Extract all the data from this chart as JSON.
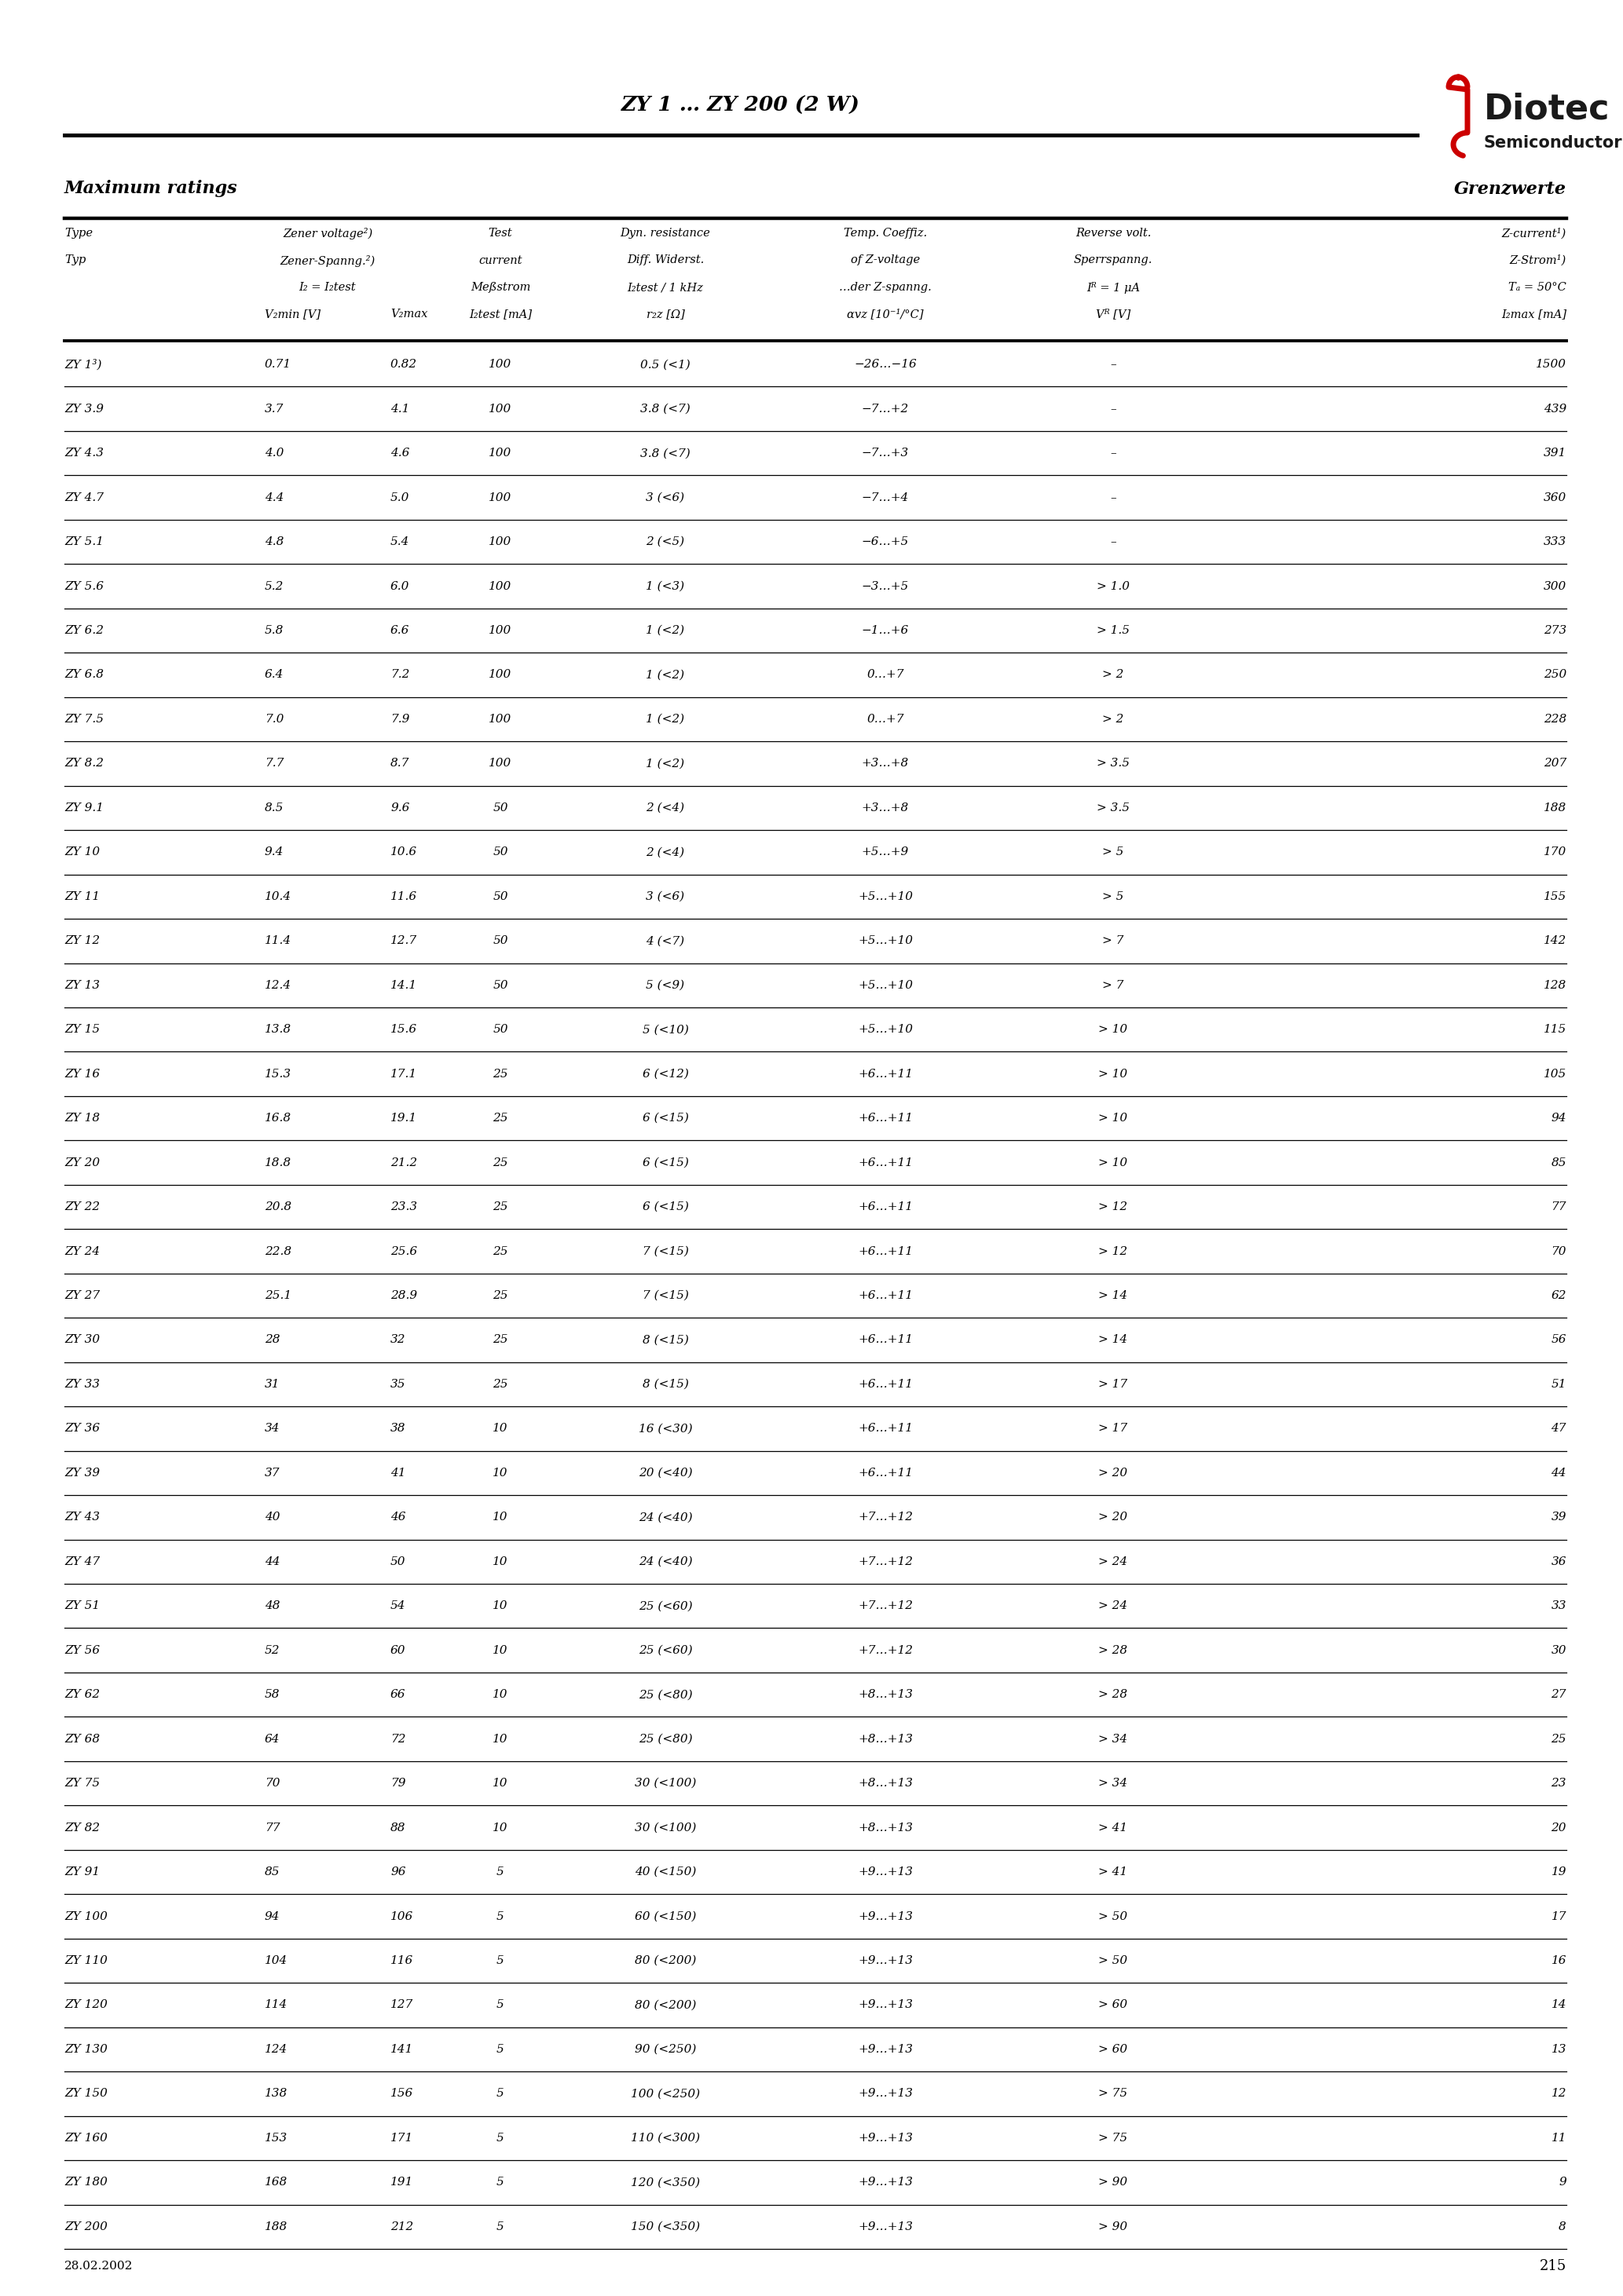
{
  "title": "ZY 1 … ZY 200 (2 W)",
  "company": "Diotec",
  "company_sub": "Semiconductor",
  "date": "28.02.2002",
  "page": "215",
  "section_left": "Maximum ratings",
  "section_right": "Grenzwerte",
  "rows": [
    [
      "ZY 1³)",
      "0.71",
      "0.82",
      "100",
      "0.5 (<1)",
      "−26…−16",
      "–",
      "1500"
    ],
    [
      "ZY 3.9",
      "3.7",
      "4.1",
      "100",
      "3.8 (<7)",
      "−7…+2",
      "–",
      "439"
    ],
    [
      "ZY 4.3",
      "4.0",
      "4.6",
      "100",
      "3.8 (<7)",
      "−7…+3",
      "–",
      "391"
    ],
    [
      "ZY 4.7",
      "4.4",
      "5.0",
      "100",
      "3 (<6)",
      "−7…+4",
      "–",
      "360"
    ],
    [
      "ZY 5.1",
      "4.8",
      "5.4",
      "100",
      "2 (<5)",
      "−6…+5",
      "–",
      "333"
    ],
    [
      "ZY 5.6",
      "5.2",
      "6.0",
      "100",
      "1 (<3)",
      "−3…+5",
      "> 1.0",
      "300"
    ],
    [
      "ZY 6.2",
      "5.8",
      "6.6",
      "100",
      "1 (<2)",
      "−1…+6",
      "> 1.5",
      "273"
    ],
    [
      "ZY 6.8",
      "6.4",
      "7.2",
      "100",
      "1 (<2)",
      "0…+7",
      "> 2",
      "250"
    ],
    [
      "ZY 7.5",
      "7.0",
      "7.9",
      "100",
      "1 (<2)",
      "0…+7",
      "> 2",
      "228"
    ],
    [
      "ZY 8.2",
      "7.7",
      "8.7",
      "100",
      "1 (<2)",
      "+3…+8",
      "> 3.5",
      "207"
    ],
    [
      "ZY 9.1",
      "8.5",
      "9.6",
      "50",
      "2 (<4)",
      "+3…+8",
      "> 3.5",
      "188"
    ],
    [
      "ZY 10",
      "9.4",
      "10.6",
      "50",
      "2 (<4)",
      "+5…+9",
      "> 5",
      "170"
    ],
    [
      "ZY 11",
      "10.4",
      "11.6",
      "50",
      "3 (<6)",
      "+5…+10",
      "> 5",
      "155"
    ],
    [
      "ZY 12",
      "11.4",
      "12.7",
      "50",
      "4 (<7)",
      "+5…+10",
      "> 7",
      "142"
    ],
    [
      "ZY 13",
      "12.4",
      "14.1",
      "50",
      "5 (<9)",
      "+5…+10",
      "> 7",
      "128"
    ],
    [
      "ZY 15",
      "13.8",
      "15.6",
      "50",
      "5 (<10)",
      "+5…+10",
      "> 10",
      "115"
    ],
    [
      "ZY 16",
      "15.3",
      "17.1",
      "25",
      "6 (<12)",
      "+6…+11",
      "> 10",
      "105"
    ],
    [
      "ZY 18",
      "16.8",
      "19.1",
      "25",
      "6 (<15)",
      "+6…+11",
      "> 10",
      "94"
    ],
    [
      "ZY 20",
      "18.8",
      "21.2",
      "25",
      "6 (<15)",
      "+6…+11",
      "> 10",
      "85"
    ],
    [
      "ZY 22",
      "20.8",
      "23.3",
      "25",
      "6 (<15)",
      "+6…+11",
      "> 12",
      "77"
    ],
    [
      "ZY 24",
      "22.8",
      "25.6",
      "25",
      "7 (<15)",
      "+6…+11",
      "> 12",
      "70"
    ],
    [
      "ZY 27",
      "25.1",
      "28.9",
      "25",
      "7 (<15)",
      "+6…+11",
      "> 14",
      "62"
    ],
    [
      "ZY 30",
      "28",
      "32",
      "25",
      "8 (<15)",
      "+6…+11",
      "> 14",
      "56"
    ],
    [
      "ZY 33",
      "31",
      "35",
      "25",
      "8 (<15)",
      "+6…+11",
      "> 17",
      "51"
    ],
    [
      "ZY 36",
      "34",
      "38",
      "10",
      "16 (<30)",
      "+6…+11",
      "> 17",
      "47"
    ],
    [
      "ZY 39",
      "37",
      "41",
      "10",
      "20 (<40)",
      "+6…+11",
      "> 20",
      "44"
    ],
    [
      "ZY 43",
      "40",
      "46",
      "10",
      "24 (<40)",
      "+7…+12",
      "> 20",
      "39"
    ],
    [
      "ZY 47",
      "44",
      "50",
      "10",
      "24 (<40)",
      "+7…+12",
      "> 24",
      "36"
    ],
    [
      "ZY 51",
      "48",
      "54",
      "10",
      "25 (<60)",
      "+7…+12",
      "> 24",
      "33"
    ],
    [
      "ZY 56",
      "52",
      "60",
      "10",
      "25 (<60)",
      "+7…+12",
      "> 28",
      "30"
    ],
    [
      "ZY 62",
      "58",
      "66",
      "10",
      "25 (<80)",
      "+8…+13",
      "> 28",
      "27"
    ],
    [
      "ZY 68",
      "64",
      "72",
      "10",
      "25 (<80)",
      "+8…+13",
      "> 34",
      "25"
    ],
    [
      "ZY 75",
      "70",
      "79",
      "10",
      "30 (<100)",
      "+8…+13",
      "> 34",
      "23"
    ],
    [
      "ZY 82",
      "77",
      "88",
      "10",
      "30 (<100)",
      "+8…+13",
      "> 41",
      "20"
    ],
    [
      "ZY 91",
      "85",
      "96",
      "5",
      "40 (<150)",
      "+9…+13",
      "> 41",
      "19"
    ],
    [
      "ZY 100",
      "94",
      "106",
      "5",
      "60 (<150)",
      "+9…+13",
      "> 50",
      "17"
    ],
    [
      "ZY 110",
      "104",
      "116",
      "5",
      "80 (<200)",
      "+9…+13",
      "> 50",
      "16"
    ],
    [
      "ZY 120",
      "114",
      "127",
      "5",
      "80 (<200)",
      "+9…+13",
      "> 60",
      "14"
    ],
    [
      "ZY 130",
      "124",
      "141",
      "5",
      "90 (<250)",
      "+9…+13",
      "> 60",
      "13"
    ],
    [
      "ZY 150",
      "138",
      "156",
      "5",
      "100 (<250)",
      "+9…+13",
      "> 75",
      "12"
    ],
    [
      "ZY 160",
      "153",
      "171",
      "5",
      "110 (<300)",
      "+9…+13",
      "> 75",
      "11"
    ],
    [
      "ZY 180",
      "168",
      "191",
      "5",
      "120 (<350)",
      "+9…+13",
      "> 90",
      "9"
    ],
    [
      "ZY 200",
      "188",
      "212",
      "5",
      "150 (<350)",
      "+9…+13",
      "> 90",
      "8"
    ]
  ]
}
